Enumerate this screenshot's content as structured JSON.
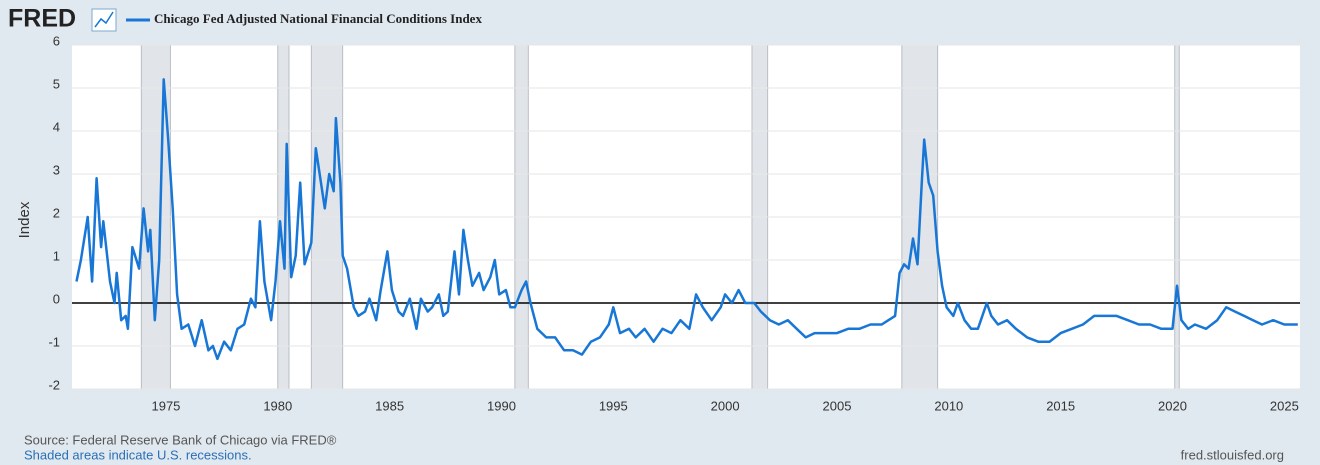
{
  "brand": "FRED",
  "source": "Source: Federal Reserve Bank of Chicago via FRED®",
  "note": "Shaded areas indicate U.S. recessions.",
  "site": "fred.stlouisfed.org",
  "chart_data": {
    "type": "line",
    "y_label": "Index",
    "xlim": [
      1970.8,
      2025.7
    ],
    "xticks": [
      1975,
      1980,
      1985,
      1990,
      1995,
      2000,
      2005,
      2010,
      2015,
      2020,
      2025
    ],
    "ylim": [
      -2,
      6
    ],
    "yticks": [
      -2,
      -1,
      0,
      1,
      2,
      3,
      4,
      5,
      6
    ],
    "grid": true,
    "recessions": [
      [
        1973.9,
        1975.2
      ],
      [
        1980.0,
        1980.5
      ],
      [
        1981.5,
        1982.9
      ],
      [
        1990.6,
        1991.2
      ],
      [
        2001.2,
        2001.9
      ],
      [
        2007.9,
        2009.5
      ],
      [
        2020.1,
        2020.3
      ]
    ],
    "x": [
      1971.0,
      1971.2,
      1971.5,
      1971.7,
      1971.9,
      1972.1,
      1972.2,
      1972.5,
      1972.7,
      1972.8,
      1973.0,
      1973.2,
      1973.3,
      1973.5,
      1973.8,
      1974.0,
      1974.2,
      1974.3,
      1974.5,
      1974.7,
      1974.9,
      1975.1,
      1975.3,
      1975.5,
      1975.7,
      1976.0,
      1976.3,
      1976.6,
      1976.9,
      1977.1,
      1977.3,
      1977.6,
      1977.9,
      1978.2,
      1978.5,
      1978.8,
      1979.0,
      1979.2,
      1979.4,
      1979.7,
      1979.9,
      1980.1,
      1980.3,
      1980.4,
      1980.6,
      1980.8,
      1981.0,
      1981.2,
      1981.5,
      1981.7,
      1981.9,
      1982.1,
      1982.3,
      1982.5,
      1982.6,
      1982.8,
      1982.9,
      1983.1,
      1983.4,
      1983.6,
      1983.9,
      1984.1,
      1984.4,
      1984.6,
      1984.9,
      1985.1,
      1985.4,
      1985.6,
      1985.9,
      1986.2,
      1986.4,
      1986.7,
      1986.9,
      1987.2,
      1987.4,
      1987.6,
      1987.9,
      1988.1,
      1988.3,
      1988.5,
      1988.7,
      1989.0,
      1989.2,
      1989.5,
      1989.7,
      1989.9,
      1990.2,
      1990.4,
      1990.6,
      1990.9,
      1991.1,
      1991.3,
      1991.6,
      1992.0,
      1992.4,
      1992.8,
      1993.2,
      1993.6,
      1994.0,
      1994.4,
      1994.8,
      1995.0,
      1995.3,
      1995.7,
      1996.0,
      1996.4,
      1996.8,
      1997.2,
      1997.6,
      1998.0,
      1998.4,
      1998.7,
      1999.0,
      1999.4,
      1999.8,
      2000.0,
      2000.3,
      2000.6,
      2000.9,
      2001.3,
      2001.6,
      2002.0,
      2002.4,
      2002.8,
      2003.2,
      2003.6,
      2004.0,
      2004.5,
      2005.0,
      2005.5,
      2006.0,
      2006.5,
      2007.0,
      2007.3,
      2007.6,
      2007.8,
      2008.0,
      2008.2,
      2008.4,
      2008.6,
      2008.8,
      2008.9,
      2009.1,
      2009.3,
      2009.5,
      2009.7,
      2009.9,
      2010.2,
      2010.4,
      2010.7,
      2011.0,
      2011.3,
      2011.7,
      2011.9,
      2012.2,
      2012.6,
      2013.0,
      2013.5,
      2014.0,
      2014.5,
      2015.0,
      2015.5,
      2016.0,
      2016.5,
      2017.0,
      2017.5,
      2018.0,
      2018.5,
      2019.0,
      2019.5,
      2020.0,
      2020.2,
      2020.4,
      2020.7,
      2021.0,
      2021.5,
      2022.0,
      2022.4,
      2022.8,
      2023.2,
      2023.6,
      2024.0,
      2024.5,
      2025.0,
      2025.6
    ],
    "series": [
      {
        "name": "Chicago Fed Adjusted National Financial Conditions Index",
        "color": "#1877d6",
        "values": [
          0.5,
          1.0,
          2.0,
          0.5,
          2.9,
          1.3,
          1.9,
          0.5,
          0.0,
          0.7,
          -0.4,
          -0.3,
          -0.6,
          1.3,
          0.8,
          2.2,
          1.2,
          1.7,
          -0.4,
          1.0,
          5.2,
          3.8,
          2.2,
          0.2,
          -0.6,
          -0.5,
          -1.0,
          -0.4,
          -1.1,
          -1.0,
          -1.3,
          -0.9,
          -1.1,
          -0.6,
          -0.5,
          0.1,
          -0.1,
          1.9,
          0.5,
          -0.4,
          0.5,
          1.9,
          0.8,
          3.7,
          0.6,
          1.1,
          2.8,
          0.9,
          1.4,
          3.6,
          2.9,
          2.2,
          3.0,
          2.6,
          4.3,
          2.8,
          1.1,
          0.8,
          -0.1,
          -0.3,
          -0.2,
          0.1,
          -0.4,
          0.3,
          1.2,
          0.3,
          -0.2,
          -0.3,
          0.1,
          -0.6,
          0.1,
          -0.2,
          -0.1,
          0.2,
          -0.3,
          -0.2,
          1.2,
          0.2,
          1.7,
          1.0,
          0.4,
          0.7,
          0.3,
          0.6,
          1.0,
          0.2,
          0.3,
          -0.1,
          -0.1,
          0.3,
          0.5,
          0.0,
          -0.6,
          -0.8,
          -0.8,
          -1.1,
          -1.1,
          -1.2,
          -0.9,
          -0.8,
          -0.5,
          -0.1,
          -0.7,
          -0.6,
          -0.8,
          -0.6,
          -0.9,
          -0.6,
          -0.7,
          -0.4,
          -0.6,
          0.2,
          -0.1,
          -0.4,
          -0.1,
          0.2,
          0.0,
          0.3,
          0.0,
          0.0,
          -0.2,
          -0.4,
          -0.5,
          -0.4,
          -0.6,
          -0.8,
          -0.7,
          -0.7,
          -0.7,
          -0.6,
          -0.6,
          -0.5,
          -0.5,
          -0.4,
          -0.3,
          0.7,
          0.9,
          0.8,
          1.5,
          0.9,
          2.9,
          3.8,
          2.8,
          2.5,
          1.2,
          0.4,
          -0.1,
          -0.3,
          0.0,
          -0.4,
          -0.6,
          -0.6,
          0.0,
          -0.3,
          -0.5,
          -0.4,
          -0.6,
          -0.8,
          -0.9,
          -0.9,
          -0.7,
          -0.6,
          -0.5,
          -0.3,
          -0.3,
          -0.3,
          -0.4,
          -0.5,
          -0.5,
          -0.6,
          -0.6,
          0.4,
          -0.4,
          -0.6,
          -0.5,
          -0.6,
          -0.4,
          -0.1,
          -0.2,
          -0.3,
          -0.4,
          -0.5,
          -0.4,
          -0.5,
          -0.5
        ]
      }
    ]
  }
}
